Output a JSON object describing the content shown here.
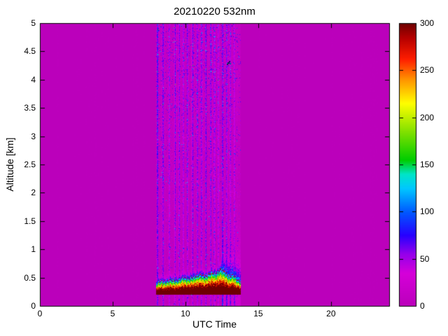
{
  "chart_data": {
    "type": "heatmap",
    "title": "20210220 532nm",
    "xlabel": "UTC Time",
    "ylabel": "Altitude [km]",
    "xlim": [
      0,
      24
    ],
    "ylim": [
      0,
      5
    ],
    "xticks": [
      0,
      5,
      10,
      15,
      20
    ],
    "yticks": [
      0,
      0.5,
      1,
      1.5,
      2,
      2.5,
      3,
      3.5,
      4,
      4.5,
      5
    ],
    "grid": false,
    "colorbar": {
      "min": 0,
      "max": 300,
      "ticks": [
        0,
        50,
        100,
        150,
        200,
        250,
        300
      ],
      "position": "right"
    },
    "colormap": [
      {
        "v": 0,
        "c": [
          187,
          0,
          187
        ]
      },
      {
        "v": 35,
        "c": [
          214,
          0,
          218
        ]
      },
      {
        "v": 55,
        "c": [
          150,
          0,
          235
        ]
      },
      {
        "v": 75,
        "c": [
          40,
          0,
          255
        ]
      },
      {
        "v": 100,
        "c": [
          0,
          90,
          255
        ]
      },
      {
        "v": 125,
        "c": [
          0,
          200,
          255
        ]
      },
      {
        "v": 140,
        "c": [
          0,
          230,
          200
        ]
      },
      {
        "v": 155,
        "c": [
          0,
          205,
          0
        ]
      },
      {
        "v": 185,
        "c": [
          130,
          225,
          0
        ]
      },
      {
        "v": 215,
        "c": [
          255,
          255,
          0
        ]
      },
      {
        "v": 240,
        "c": [
          255,
          150,
          0
        ]
      },
      {
        "v": 262,
        "c": [
          255,
          30,
          0
        ]
      },
      {
        "v": 285,
        "c": [
          180,
          0,
          0
        ]
      },
      {
        "v": 300,
        "c": [
          110,
          0,
          0
        ]
      }
    ],
    "background_value": 0,
    "measurement_window": {
      "start": 8.0,
      "end": 13.8
    },
    "boundary_layer": {
      "base_km": 0.2,
      "max_value": 300,
      "top_profile": [
        {
          "t": 8.0,
          "top": 0.4
        },
        {
          "t": 8.3,
          "top": 0.44
        },
        {
          "t": 8.6,
          "top": 0.42
        },
        {
          "t": 9.0,
          "top": 0.46
        },
        {
          "t": 9.4,
          "top": 0.44
        },
        {
          "t": 9.8,
          "top": 0.5
        },
        {
          "t": 10.2,
          "top": 0.48
        },
        {
          "t": 10.6,
          "top": 0.52
        },
        {
          "t": 11.0,
          "top": 0.55
        },
        {
          "t": 11.4,
          "top": 0.52
        },
        {
          "t": 11.8,
          "top": 0.6
        },
        {
          "t": 12.1,
          "top": 0.57
        },
        {
          "t": 12.4,
          "top": 0.65
        },
        {
          "t": 12.7,
          "top": 0.6
        },
        {
          "t": 13.0,
          "top": 0.52
        },
        {
          "t": 13.3,
          "top": 0.55
        },
        {
          "t": 13.6,
          "top": 0.45
        },
        {
          "t": 13.8,
          "top": 0.42
        }
      ]
    },
    "streaks": [
      8.08,
      8.45,
      8.9,
      9.3,
      9.55,
      9.85,
      10.15,
      10.5,
      10.82,
      11.12,
      11.42,
      11.72,
      12.0,
      12.28,
      12.55,
      12.82,
      13.08,
      13.35
    ],
    "haze": {
      "t_start": 12.5,
      "t_end": 13.8,
      "top_km": 1.5
    },
    "artifact": {
      "t": 13.0,
      "alt_km": 4.3
    }
  }
}
